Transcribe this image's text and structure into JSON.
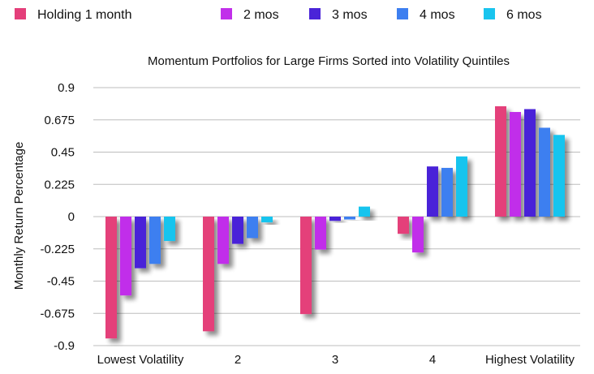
{
  "chart_data": {
    "type": "bar",
    "title": "Momentum Portfolios for Large Firms Sorted into Volatility Quintiles",
    "xlabel": "",
    "ylabel": "Monthly Return Percentage",
    "categories": [
      "Lowest Volatility",
      "2",
      "3",
      "4",
      "Highest Volatility"
    ],
    "yticks": [
      "0.9",
      "0.675",
      "0.45",
      "0.225",
      "0",
      "-0.225",
      "-0.45",
      "-0.675",
      "-0.9"
    ],
    "ylim": [
      -0.9,
      0.9
    ],
    "grid": true,
    "legend_position": "top",
    "series": [
      {
        "name": "Holding 1 month",
        "color": "#e43f7a",
        "values": [
          -0.85,
          -0.8,
          -0.68,
          -0.12,
          0.77
        ]
      },
      {
        "name": "2 mos",
        "color": "#c12fea",
        "values": [
          -0.55,
          -0.33,
          -0.23,
          -0.25,
          0.73
        ]
      },
      {
        "name": "3 mos",
        "color": "#4a24d8",
        "values": [
          -0.36,
          -0.19,
          -0.03,
          0.35,
          0.75
        ]
      },
      {
        "name": "4 mos",
        "color": "#3d7ff0",
        "values": [
          -0.33,
          -0.15,
          -0.02,
          0.34,
          0.62
        ]
      },
      {
        "name": "6 mos",
        "color": "#19c4ee",
        "values": [
          -0.17,
          -0.04,
          0.07,
          0.42,
          0.57
        ]
      }
    ]
  }
}
